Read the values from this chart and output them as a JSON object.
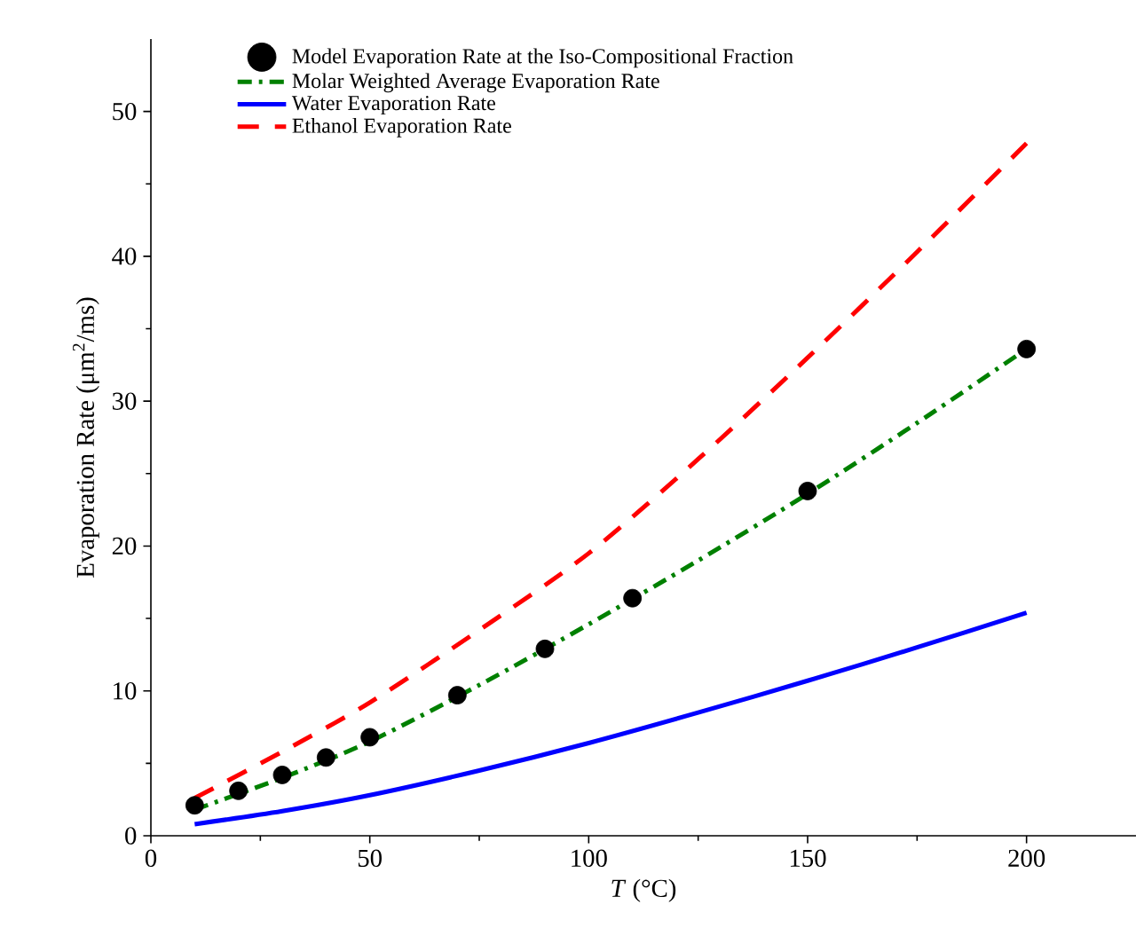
{
  "chart_data": {
    "type": "line",
    "xlabel": "*T* (°C)",
    "ylabel": "Evaporation Rate (μm$^{2}$/ms)",
    "xlim": [
      0,
      225
    ],
    "ylim": [
      0,
      55
    ],
    "xticks": [
      0,
      50,
      100,
      150,
      200
    ],
    "yticks": [
      0,
      10,
      20,
      30,
      40,
      50
    ],
    "legend": "top left",
    "grid": false,
    "series": [
      {
        "name": "Model Evaporation Rate at the Iso-Compositional Fraction",
        "type": "scatter",
        "color": "#000000",
        "x": [
          10,
          20,
          30,
          40,
          50,
          70,
          90,
          110,
          150,
          200
        ],
        "values": [
          2.1,
          3.1,
          4.2,
          5.4,
          6.8,
          9.7,
          12.9,
          16.4,
          23.8,
          33.6
        ]
      },
      {
        "name": "Molar Weighted Average Evaporation Rate",
        "marker": "none",
        "line_style": "dashdot",
        "color": "#008000",
        "x": [
          10,
          30,
          50,
          75,
          100,
          125,
          150,
          175,
          200
        ],
        "values": [
          1.8,
          4.0,
          6.5,
          10.4,
          14.6,
          19.0,
          23.6,
          28.5,
          33.6
        ]
      },
      {
        "name": "Water Evaporation Rate",
        "marker": "none",
        "line_style": "solid",
        "color": "#0000ff",
        "x": [
          10,
          30,
          50,
          75,
          100,
          125,
          150,
          175,
          200
        ],
        "values": [
          0.8,
          1.7,
          2.8,
          4.5,
          6.4,
          8.5,
          10.7,
          13.0,
          15.4
        ]
      },
      {
        "name": "Ethanol Evaporation Rate",
        "marker": "none",
        "line_style": "dashed",
        "color": "#ff0000",
        "x": [
          10,
          30,
          50,
          75,
          100,
          125,
          150,
          175,
          200
        ],
        "values": [
          2.6,
          5.8,
          9.2,
          14.2,
          19.5,
          26.0,
          33.0,
          40.3,
          47.8
        ]
      }
    ]
  }
}
